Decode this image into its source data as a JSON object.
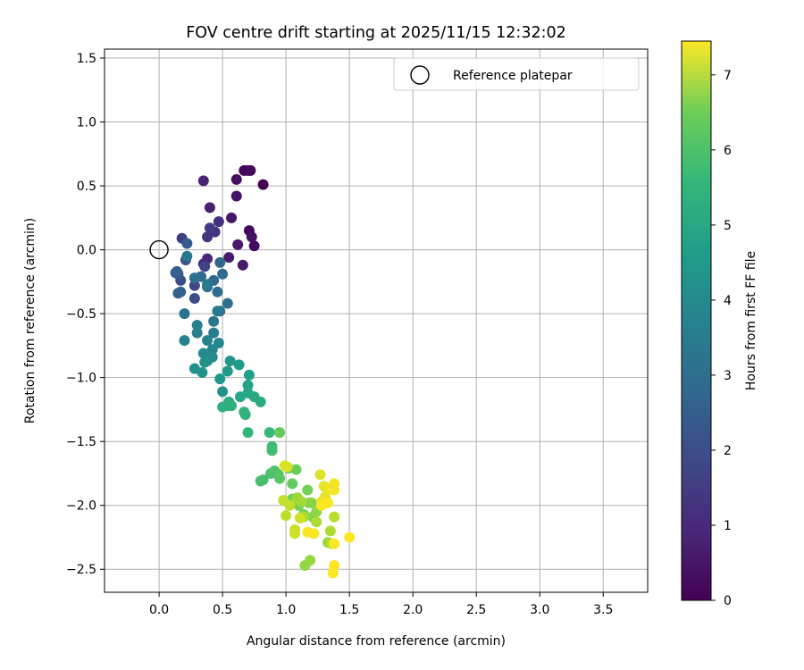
{
  "chart_data": {
    "type": "scatter",
    "title": "FOV centre drift starting at 2025/11/15 12:32:02",
    "xlabel": "Angular distance from reference (arcmin)",
    "ylabel": "Rotation from reference (arcmin)",
    "xlim": [
      -0.43,
      3.85
    ],
    "ylim": [
      -2.68,
      1.57
    ],
    "xticks": [
      0.0,
      0.5,
      1.0,
      1.5,
      2.0,
      2.5,
      3.0,
      3.5
    ],
    "xtick_labels": [
      "0.0",
      "0.5",
      "1.0",
      "1.5",
      "2.0",
      "2.5",
      "3.0",
      "3.5"
    ],
    "yticks": [
      1.5,
      1.0,
      0.5,
      0.0,
      -0.5,
      -1.0,
      -1.5,
      -2.0,
      -2.5
    ],
    "ytick_labels": [
      "1.5",
      "1.0",
      "0.5",
      "0.0",
      "−0.5",
      "−1.0",
      "−1.5",
      "−2.0",
      "−2.5"
    ],
    "grid": true,
    "legend": {
      "placement": "top-right",
      "entries": [
        "Reference platepar"
      ]
    },
    "reference_point": {
      "x": 0.0,
      "y": 0.0,
      "label": "Reference platepar"
    },
    "colorbar": {
      "label": "Hours from first FF file",
      "colormap": "viridis",
      "range": [
        0,
        7.45
      ],
      "ticks": [
        0,
        1,
        2,
        3,
        4,
        5,
        6,
        7
      ],
      "tick_labels": [
        "0",
        "1",
        "2",
        "3",
        "4",
        "5",
        "6",
        "7"
      ]
    },
    "points": [
      [
        0.82,
        0.51,
        0.0
      ],
      [
        0.7,
        0.62,
        0.05
      ],
      [
        0.67,
        0.62,
        0.1
      ],
      [
        0.72,
        0.62,
        0.15
      ],
      [
        0.71,
        0.15,
        0.2
      ],
      [
        0.75,
        0.03,
        0.25
      ],
      [
        0.61,
        0.55,
        0.3
      ],
      [
        0.73,
        0.1,
        0.35
      ],
      [
        0.61,
        0.42,
        0.4
      ],
      [
        0.57,
        0.25,
        0.45
      ],
      [
        0.62,
        0.04,
        0.5
      ],
      [
        0.66,
        -0.12,
        0.55
      ],
      [
        0.55,
        -0.06,
        0.6
      ],
      [
        0.4,
        0.33,
        0.7
      ],
      [
        0.35,
        0.54,
        0.75
      ],
      [
        0.38,
        -0.07,
        0.8
      ],
      [
        0.35,
        -0.11,
        0.9
      ],
      [
        0.47,
        0.22,
        1.0
      ],
      [
        0.44,
        0.14,
        1.1
      ],
      [
        0.38,
        0.1,
        1.2
      ],
      [
        0.4,
        0.17,
        1.3
      ],
      [
        0.18,
        0.09,
        1.4
      ],
      [
        0.36,
        -0.13,
        1.5
      ],
      [
        0.28,
        -0.28,
        1.6
      ],
      [
        0.17,
        -0.24,
        1.7
      ],
      [
        0.28,
        -0.38,
        1.8
      ],
      [
        0.21,
        -0.08,
        1.9
      ],
      [
        0.15,
        -0.19,
        2.0
      ],
      [
        0.22,
        0.05,
        2.1
      ],
      [
        0.13,
        -0.18,
        2.15
      ],
      [
        0.17,
        -0.33,
        2.2
      ],
      [
        0.15,
        -0.34,
        2.25
      ],
      [
        0.14,
        -0.17,
        2.3
      ],
      [
        0.48,
        -0.1,
        2.4
      ],
      [
        0.5,
        -0.19,
        2.45
      ],
      [
        0.43,
        -0.24,
        2.5
      ],
      [
        0.33,
        -0.21,
        2.55
      ],
      [
        0.38,
        -0.29,
        2.6
      ],
      [
        0.46,
        -0.33,
        2.65
      ],
      [
        0.54,
        -0.42,
        2.7
      ],
      [
        0.28,
        -0.22,
        2.75
      ],
      [
        0.48,
        -0.48,
        2.8
      ],
      [
        0.2,
        -0.5,
        2.85
      ],
      [
        0.43,
        -0.56,
        2.9
      ],
      [
        0.22,
        -0.05,
        2.95
      ],
      [
        0.38,
        -0.27,
        3.0
      ],
      [
        0.46,
        -0.48,
        3.05
      ],
      [
        0.43,
        -0.65,
        3.1
      ],
      [
        0.3,
        -0.59,
        3.2
      ],
      [
        0.3,
        -0.65,
        3.25
      ],
      [
        0.2,
        -0.71,
        3.3
      ],
      [
        0.38,
        -0.71,
        3.35
      ],
      [
        0.42,
        -0.78,
        3.4
      ],
      [
        0.47,
        -0.73,
        3.5
      ],
      [
        0.35,
        -0.81,
        3.55
      ],
      [
        0.42,
        -0.84,
        3.6
      ],
      [
        0.38,
        -0.87,
        3.65
      ],
      [
        0.5,
        -1.11,
        3.7
      ],
      [
        0.28,
        -0.93,
        3.75
      ],
      [
        0.34,
        -0.96,
        3.8
      ],
      [
        0.36,
        -0.88,
        3.85
      ],
      [
        0.56,
        -0.87,
        3.9
      ],
      [
        0.54,
        -0.95,
        3.95
      ],
      [
        0.48,
        -1.01,
        4.0
      ],
      [
        0.63,
        -0.9,
        4.1
      ],
      [
        0.71,
        -0.98,
        4.2
      ],
      [
        0.7,
        -1.06,
        4.3
      ],
      [
        0.64,
        -1.15,
        4.4
      ],
      [
        0.7,
        -1.12,
        4.45
      ],
      [
        0.75,
        -1.15,
        4.5
      ],
      [
        0.8,
        -1.19,
        4.55
      ],
      [
        0.55,
        -1.19,
        4.6
      ],
      [
        0.54,
        -1.22,
        4.65
      ],
      [
        0.5,
        -1.23,
        4.7
      ],
      [
        0.57,
        -1.22,
        4.75
      ],
      [
        0.67,
        -1.27,
        4.8
      ],
      [
        0.68,
        -1.29,
        4.85
      ],
      [
        0.7,
        -1.43,
        4.9
      ],
      [
        0.87,
        -1.43,
        5.0
      ],
      [
        0.89,
        -1.54,
        5.1
      ],
      [
        0.89,
        -1.57,
        5.15
      ],
      [
        0.82,
        -1.8,
        5.2
      ],
      [
        0.8,
        -1.81,
        5.25
      ],
      [
        0.88,
        -1.75,
        5.3
      ],
      [
        0.91,
        -1.73,
        5.35
      ],
      [
        0.94,
        -1.76,
        5.4
      ],
      [
        0.95,
        -1.79,
        5.5
      ],
      [
        1.05,
        -1.83,
        5.6
      ],
      [
        0.95,
        -1.43,
        5.65
      ],
      [
        1.02,
        -1.71,
        5.7
      ],
      [
        1.08,
        -1.72,
        5.75
      ],
      [
        1.05,
        -1.95,
        5.8
      ],
      [
        1.17,
        -1.88,
        5.85
      ],
      [
        1.1,
        -2.0,
        5.9
      ],
      [
        1.14,
        -2.07,
        5.95
      ],
      [
        1.2,
        -1.98,
        6.0
      ],
      [
        1.21,
        -2.09,
        6.05
      ],
      [
        1.18,
        -1.98,
        6.1
      ],
      [
        1.24,
        -2.05,
        6.15
      ],
      [
        1.15,
        -2.47,
        6.2
      ],
      [
        1.19,
        -2.43,
        6.25
      ],
      [
        1.33,
        -2.29,
        6.3
      ],
      [
        1.09,
        -1.94,
        6.35
      ],
      [
        1.12,
        -1.97,
        6.4
      ],
      [
        1.14,
        -2.09,
        6.45
      ],
      [
        1.24,
        -2.13,
        6.5
      ],
      [
        1.35,
        -2.2,
        6.55
      ],
      [
        1.36,
        -2.3,
        6.6
      ],
      [
        1.38,
        -2.09,
        6.65
      ],
      [
        1.0,
        -2.08,
        6.7
      ],
      [
        1.03,
        -2.0,
        6.75
      ],
      [
        0.98,
        -1.96,
        6.8
      ],
      [
        1.07,
        -2.19,
        6.85
      ],
      [
        1.07,
        -2.22,
        6.9
      ],
      [
        1.11,
        -2.1,
        6.95
      ],
      [
        1.01,
        -1.7,
        7.0
      ],
      [
        0.99,
        -1.69,
        7.05
      ],
      [
        1.27,
        -1.76,
        7.1
      ],
      [
        1.3,
        -1.85,
        7.15
      ],
      [
        1.31,
        -1.93,
        7.2
      ],
      [
        1.28,
        -1.97,
        7.25
      ],
      [
        1.35,
        -1.87,
        7.3
      ],
      [
        1.38,
        -1.83,
        7.35
      ],
      [
        1.38,
        -1.88,
        7.35
      ],
      [
        1.22,
        -2.22,
        7.4
      ],
      [
        1.17,
        -2.21,
        7.4
      ],
      [
        1.38,
        -2.47,
        7.45
      ],
      [
        1.37,
        -2.53,
        7.45
      ],
      [
        1.5,
        -2.25,
        7.45
      ],
      [
        1.38,
        -2.3,
        7.45
      ],
      [
        1.33,
        -1.98,
        7.45
      ],
      [
        1.28,
        -2.0,
        7.45
      ]
    ]
  }
}
